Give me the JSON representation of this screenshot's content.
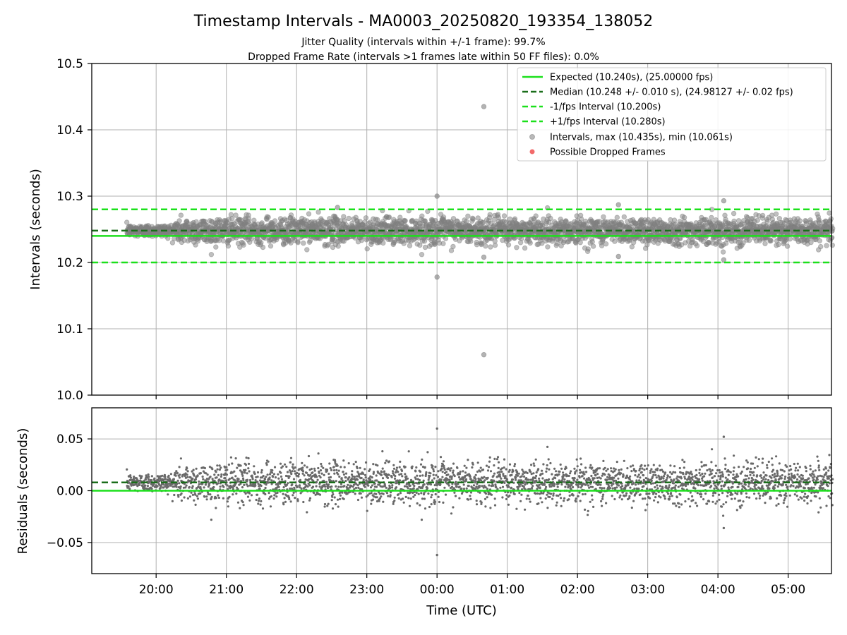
{
  "chart_data": [
    {
      "type": "scatter",
      "title": "Timestamp Intervals - MA0003_20250820_193354_138052",
      "subtitle_lines": [
        "Jitter Quality (intervals within +/-1 frame): 99.7%",
        "Dropped Frame Rate (intervals >1 frames late within 50 FF files): 0.0%"
      ],
      "ylabel": "Intervals (seconds)",
      "ylim": [
        10.0,
        10.5
      ],
      "yticks": [
        10.0,
        10.1,
        10.2,
        10.3,
        10.4,
        10.5
      ],
      "ytick_labels": [
        "10.0",
        "10.1",
        "10.2",
        "10.3",
        "10.4",
        "10.5"
      ],
      "grid": true,
      "legend_position": "upper right",
      "reference_lines": [
        {
          "name": "Expected (10.240s), (25.00000 fps)",
          "value": 10.24,
          "style": "solid",
          "color": "#1be01b"
        },
        {
          "name": "Median (10.248 +/- 0.010 s), (24.98127 +/- 0.02 fps)",
          "value": 10.248,
          "style": "dashed",
          "color": "#1a6e1a"
        },
        {
          "name": "-1/fps Interval (10.200s)",
          "value": 10.2,
          "style": "dashed",
          "color": "#1be01b"
        },
        {
          "name": "+1/fps Interval (10.280s)",
          "value": 10.28,
          "style": "dashed",
          "color": "#1be01b"
        }
      ],
      "series": [
        {
          "name": "Intervals, max (10.435s), min (10.061s)",
          "color": "#808080",
          "x_range": [
            "19:35",
            "05:38"
          ],
          "center": 10.248,
          "spread_std": 0.01,
          "count": 3000,
          "notable_points": [
            {
              "x": "00:40",
              "y": 10.435
            },
            {
              "x": "00:40",
              "y": 10.061
            },
            {
              "x": "00:00",
              "y": 10.3
            },
            {
              "x": "00:00",
              "y": 10.178
            },
            {
              "x": "04:05",
              "y": 10.293
            },
            {
              "x": "04:05",
              "y": 10.204
            },
            {
              "x": "02:35",
              "y": 10.287
            },
            {
              "x": "02:35",
              "y": 10.209
            },
            {
              "x": "00:40",
              "y": 10.208
            },
            {
              "x": "22:35",
              "y": 10.283
            }
          ]
        },
        {
          "name": "Possible Dropped Frames",
          "color": "#f05050",
          "count": 0
        }
      ]
    },
    {
      "type": "scatter",
      "ylabel": "Residuals (seconds)",
      "xlabel": "Time (UTC)",
      "ylim": [
        -0.08,
        0.08
      ],
      "yticks": [
        -0.05,
        0.0,
        0.05
      ],
      "ytick_labels": [
        "−0.05",
        "0.00",
        "0.05"
      ],
      "x_range": [
        "19:05",
        "05:37"
      ],
      "xticks": [
        "20:00",
        "21:00",
        "22:00",
        "23:00",
        "00:00",
        "01:00",
        "02:00",
        "03:00",
        "04:00",
        "05:00"
      ],
      "grid": true,
      "reference_lines": [
        {
          "value": 0.0,
          "style": "solid",
          "color": "#1be01b"
        },
        {
          "value": 0.008,
          "style": "dashed",
          "color": "#1a6e1a"
        }
      ],
      "series": [
        {
          "color": "#696969",
          "center": 0.008,
          "spread_std": 0.01,
          "count": 3000,
          "notable_points": [
            {
              "x": "00:00",
              "y": 0.06
            },
            {
              "x": "00:00",
              "y": -0.062
            },
            {
              "x": "04:05",
              "y": 0.052
            },
            {
              "x": "04:05",
              "y": -0.036
            }
          ]
        }
      ]
    }
  ]
}
